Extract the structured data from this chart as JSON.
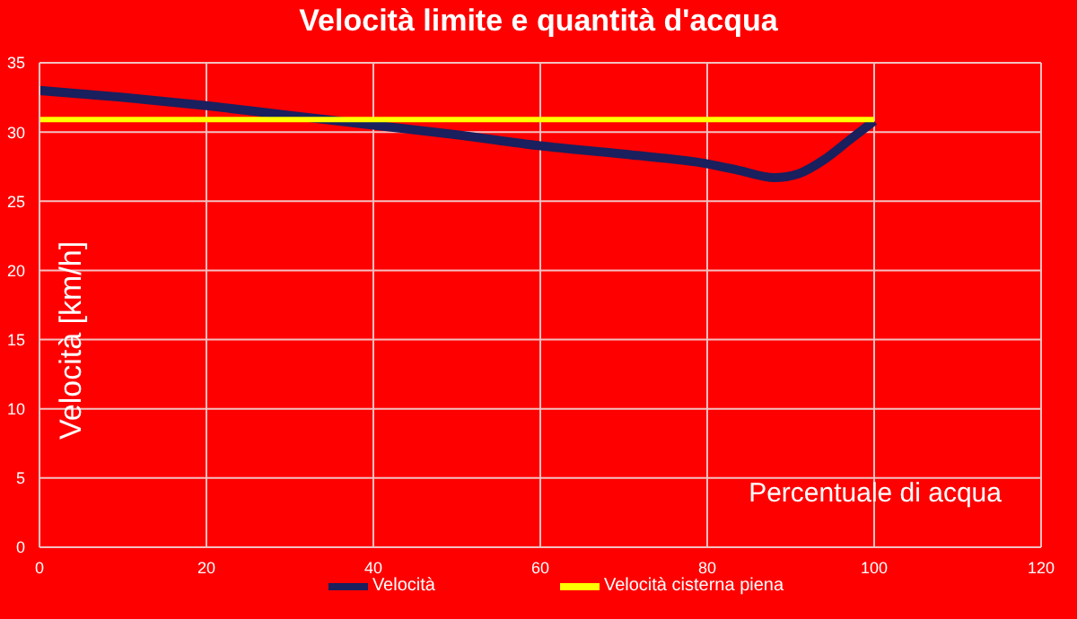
{
  "chart_data": {
    "type": "line",
    "title": "Velocità limite e quantità d'acqua",
    "xlabel": "Percentuale di acqua",
    "ylabel": "Velocità [km/h]",
    "xlim": [
      0,
      120
    ],
    "xticks": [
      0,
      20,
      40,
      60,
      80,
      100,
      120
    ],
    "ylim": [
      0,
      35
    ],
    "yticks": [
      0,
      5,
      10,
      15,
      20,
      25,
      30,
      35
    ],
    "grid": true,
    "legend": "bottom",
    "marker": "none",
    "line_style": "solid",
    "series": [
      {
        "name": "Velocità",
        "color": "#1a1f5e",
        "x": [
          0,
          10,
          20,
          30,
          40,
          50,
          60,
          70,
          80,
          84,
          88,
          91,
          94,
          97,
          100
        ],
        "values": [
          33,
          32.5,
          31.9,
          31.2,
          30.5,
          29.8,
          29.0,
          28.4,
          27.7,
          27.2,
          26.7,
          27.0,
          28.0,
          29.4,
          30.8
        ]
      },
      {
        "name": "Velocità cisterna piena",
        "color": "#ffff00",
        "x": [
          0,
          100
        ],
        "values": [
          30.9,
          30.9
        ]
      }
    ]
  }
}
